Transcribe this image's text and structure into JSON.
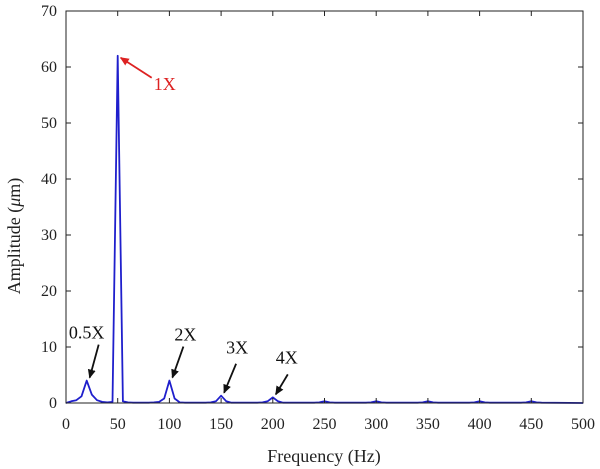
{
  "chart_data": {
    "type": "line",
    "title": "",
    "xlabel": "Frequency (Hz)",
    "ylabel_main": "Amplitude (",
    "ylabel_unit": "μ",
    "ylabel_end": "m)",
    "xlim": [
      0,
      500
    ],
    "ylim": [
      0,
      70
    ],
    "xticks": [
      0,
      50,
      100,
      150,
      200,
      250,
      300,
      350,
      400,
      450,
      500
    ],
    "yticks": [
      0,
      10,
      20,
      30,
      40,
      50,
      60,
      70
    ],
    "grid": false,
    "series": [
      {
        "color": "#1f1fcc",
        "x": [
          0,
          5,
          10,
          15,
          20,
          25,
          30,
          35,
          40,
          45,
          50,
          55,
          60,
          65,
          70,
          75,
          80,
          85,
          90,
          95,
          100,
          105,
          110,
          115,
          120,
          125,
          130,
          135,
          140,
          145,
          150,
          155,
          160,
          165,
          170,
          175,
          180,
          185,
          190,
          195,
          200,
          205,
          210,
          215,
          220,
          225,
          230,
          240,
          245,
          250,
          255,
          260,
          290,
          295,
          300,
          305,
          310,
          340,
          345,
          350,
          355,
          360,
          390,
          395,
          400,
          405,
          410,
          440,
          445,
          450,
          455,
          460,
          500
        ],
        "y": [
          0,
          0.3,
          0.5,
          1.2,
          4.0,
          1.5,
          0.5,
          0.2,
          0.1,
          0.2,
          62,
          0.3,
          0.1,
          0.05,
          0.05,
          0.05,
          0.05,
          0.1,
          0.2,
          0.8,
          4.0,
          0.8,
          0.1,
          0.05,
          0.05,
          0.05,
          0.05,
          0.05,
          0.1,
          0.3,
          1.3,
          0.3,
          0.05,
          0.05,
          0.05,
          0.05,
          0.05,
          0.05,
          0.1,
          0.3,
          1.0,
          0.3,
          0.05,
          0.05,
          0.05,
          0.05,
          0.05,
          0.05,
          0.1,
          0.3,
          0.1,
          0.05,
          0.05,
          0.1,
          0.3,
          0.1,
          0.05,
          0.05,
          0.1,
          0.3,
          0.1,
          0.05,
          0.05,
          0.1,
          0.3,
          0.1,
          0.05,
          0.05,
          0.1,
          0.3,
          0.1,
          0.05,
          0
        ]
      }
    ],
    "annotations": [
      {
        "text": "1X",
        "color": "#dd2222",
        "x": 50,
        "y": 62
      },
      {
        "text": "0.5X",
        "color": "#111111",
        "x": 20,
        "y": 4.0
      },
      {
        "text": "2X",
        "color": "#111111",
        "x": 100,
        "y": 4.0
      },
      {
        "text": "3X",
        "color": "#111111",
        "x": 150,
        "y": 1.3
      },
      {
        "text": "4X",
        "color": "#111111",
        "x": 200,
        "y": 1.0
      }
    ]
  }
}
